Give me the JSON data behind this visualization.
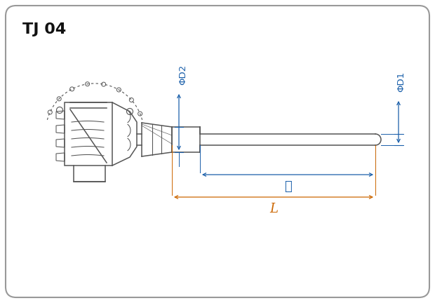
{
  "title": "TJ 04",
  "title_color": "#111111",
  "title_fontsize": 16,
  "bg_color": "#ffffff",
  "line_color": "#555555",
  "dim_color": "#1a5faa",
  "dim_L_color": "#cc6600",
  "label_phi_d2": "ΦD2",
  "label_phi_d1": "ΦD1",
  "label_l": "ℓ",
  "label_L": "L",
  "figsize": [
    6.2,
    4.32
  ],
  "dpi": 100
}
